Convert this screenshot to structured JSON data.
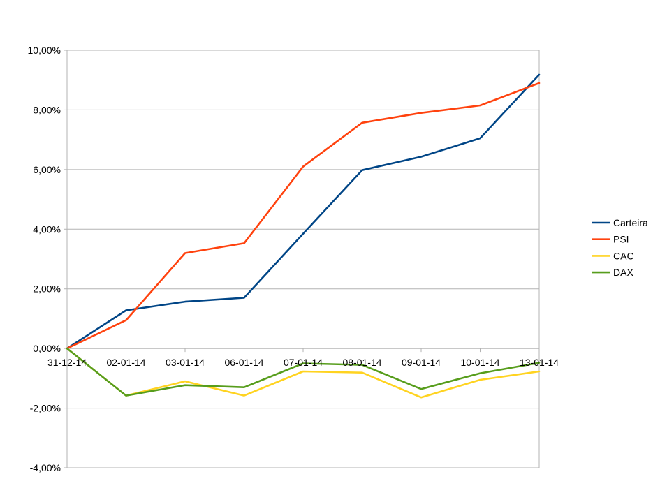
{
  "chart_data": {
    "type": "line",
    "title": "",
    "xlabel": "",
    "ylabel": "",
    "categories": [
      "31-12-14",
      "02-01-14",
      "03-01-14",
      "06-01-14",
      "07-01-14",
      "08-01-14",
      "09-01-14",
      "10-01-14",
      "13-01-14"
    ],
    "y_ticks": [
      "-4,00%",
      "-2,00%",
      "0,00%",
      "2,00%",
      "4,00%",
      "6,00%",
      "8,00%",
      "10,00%"
    ],
    "ylim": [
      -4,
      10
    ],
    "grid": true,
    "legend_position": "right",
    "series": [
      {
        "name": "Carteira",
        "color": "#004586",
        "values": [
          0,
          1.28,
          1.57,
          1.7,
          3.85,
          5.98,
          6.43,
          7.05,
          9.18
        ]
      },
      {
        "name": "PSI",
        "color": "#ff420e",
        "values": [
          0,
          0.95,
          3.2,
          3.53,
          6.1,
          7.57,
          7.9,
          8.15,
          8.9
        ]
      },
      {
        "name": "CAC",
        "color": "#ffd320",
        "values": [
          0,
          -1.58,
          -1.1,
          -1.58,
          -0.77,
          -0.81,
          -1.64,
          -1.05,
          -0.77
        ]
      },
      {
        "name": "DAX",
        "color": "#579d1c",
        "values": [
          0,
          -1.58,
          -1.23,
          -1.3,
          -0.5,
          -0.55,
          -1.36,
          -0.83,
          -0.48
        ]
      }
    ]
  }
}
